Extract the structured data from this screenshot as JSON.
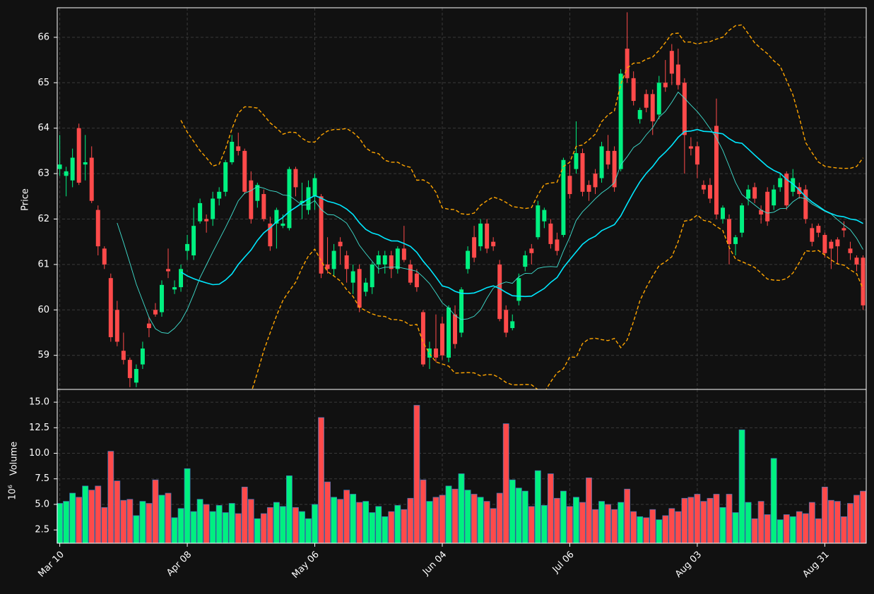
{
  "chart_data": {
    "type": "candlestick",
    "ylabel": "Price",
    "open": [
      63.1,
      62.95,
      62.85,
      64.0,
      63.2,
      63.35,
      62.2,
      61.35,
      60.7,
      60.0,
      59.1,
      58.9,
      58.4,
      58.8,
      59.7,
      60.0,
      59.95,
      60.9,
      60.45,
      60.5,
      61.3,
      61.2,
      61.95,
      62.0,
      62.0,
      62.45,
      62.6,
      63.25,
      63.6,
      63.5,
      62.85,
      62.4,
      62.55,
      61.9,
      61.9,
      61.85,
      61.8,
      63.1,
      62.35,
      62.2,
      62.5,
      62.5,
      61.0,
      60.9,
      61.5,
      61.2,
      60.6,
      60.9,
      60.4,
      60.5,
      61.0,
      61.0,
      61.2,
      60.9,
      61.35,
      61.0,
      60.8,
      59.95,
      58.95,
      59.15,
      59.7,
      58.95,
      59.9,
      59.5,
      60.9,
      61.6,
      61.4,
      61.9,
      61.5,
      61.0,
      60.0,
      59.6,
      60.2,
      60.95,
      61.35,
      61.6,
      61.95,
      61.9,
      61.55,
      61.65,
      62.95,
      63.1,
      63.45,
      62.75,
      63.0,
      62.9,
      63.5,
      63.5,
      63.1,
      65.75,
      65.1,
      64.2,
      64.75,
      64.75,
      64.3,
      65.0,
      65.7,
      65.4,
      65.0,
      63.6,
      63.6,
      62.75,
      62.75,
      64.05,
      62.0,
      62.0,
      61.45,
      61.7,
      62.45,
      62.7,
      62.2,
      62.6,
      62.3,
      62.7,
      63.0,
      62.6,
      62.7,
      62.65,
      61.8,
      61.85,
      61.65,
      61.5,
      61.55,
      61.8,
      61.35,
      61.15,
      61.15
    ],
    "high": [
      63.85,
      63.15,
      63.55,
      64.1,
      63.85,
      63.6,
      62.3,
      61.4,
      60.8,
      60.2,
      59.5,
      58.95,
      58.8,
      59.3,
      59.85,
      60.15,
      60.65,
      61.35,
      60.65,
      61.0,
      61.65,
      62.25,
      62.45,
      62.1,
      62.6,
      62.7,
      63.3,
      63.85,
      63.9,
      63.55,
      63.05,
      62.8,
      62.65,
      62.05,
      62.25,
      62.1,
      63.15,
      63.15,
      62.8,
      62.85,
      63.0,
      62.55,
      61.6,
      61.45,
      61.6,
      61.3,
      61.0,
      61.0,
      60.7,
      61.05,
      61.3,
      61.3,
      61.3,
      61.4,
      61.85,
      61.1,
      60.9,
      60.0,
      59.3,
      59.9,
      59.85,
      60.1,
      60.1,
      60.5,
      61.4,
      61.85,
      62.0,
      62.0,
      61.6,
      61.1,
      60.1,
      59.9,
      60.8,
      61.3,
      61.45,
      62.4,
      62.25,
      62.0,
      61.7,
      63.35,
      63.2,
      64.15,
      63.55,
      62.85,
      63.1,
      63.7,
      63.85,
      63.6,
      65.3,
      66.55,
      65.25,
      64.45,
      64.85,
      64.85,
      65.15,
      65.5,
      65.85,
      65.75,
      65.1,
      63.8,
      63.7,
      62.85,
      62.9,
      64.65,
      62.3,
      62.1,
      61.65,
      62.35,
      62.75,
      62.8,
      62.3,
      62.7,
      62.75,
      63.0,
      63.05,
      63.1,
      62.8,
      62.75,
      61.9,
      61.9,
      61.7,
      61.55,
      61.6,
      61.95,
      61.5,
      61.2,
      61.2
    ],
    "low": [
      62.95,
      62.5,
      62.7,
      62.75,
      62.85,
      62.35,
      61.2,
      60.9,
      59.3,
      59.2,
      58.8,
      58.3,
      58.3,
      58.7,
      59.4,
      59.85,
      59.85,
      60.7,
      60.35,
      60.4,
      61.1,
      61.1,
      61.9,
      61.7,
      61.85,
      62.3,
      62.5,
      63.2,
      63.4,
      62.55,
      61.9,
      62.25,
      61.95,
      61.3,
      61.35,
      61.8,
      61.75,
      62.5,
      62.0,
      62.1,
      62.2,
      60.7,
      60.8,
      60.75,
      61.0,
      60.6,
      60.35,
      59.95,
      60.3,
      60.35,
      60.8,
      60.8,
      60.7,
      60.8,
      61.05,
      60.55,
      60.4,
      58.75,
      58.7,
      58.85,
      58.9,
      58.85,
      59.15,
      59.4,
      60.8,
      61.05,
      61.3,
      61.25,
      61.3,
      59.75,
      59.4,
      59.55,
      60.1,
      60.85,
      61.0,
      61.55,
      61.8,
      61.35,
      61.2,
      61.6,
      62.45,
      63.0,
      62.5,
      62.4,
      62.55,
      62.8,
      63.1,
      62.6,
      63.05,
      65.0,
      64.5,
      64.1,
      64.35,
      63.85,
      64.2,
      64.8,
      64.95,
      64.85,
      63.0,
      63.4,
      62.9,
      62.55,
      62.35,
      62.0,
      61.9,
      61.0,
      61.2,
      61.6,
      62.3,
      62.35,
      61.9,
      61.85,
      62.2,
      62.6,
      62.2,
      62.5,
      62.45,
      61.9,
      61.4,
      61.6,
      61.15,
      60.9,
      61.0,
      61.6,
      61.1,
      60.85,
      60.0
    ],
    "close": [
      63.2,
      63.05,
      63.35,
      62.8,
      63.25,
      62.4,
      61.4,
      61.0,
      59.4,
      59.3,
      58.9,
      58.5,
      58.7,
      59.15,
      59.6,
      59.9,
      60.55,
      60.85,
      60.5,
      60.9,
      61.45,
      61.85,
      62.35,
      61.95,
      62.45,
      62.6,
      63.25,
      63.7,
      63.5,
      62.6,
      62.0,
      62.75,
      62.0,
      61.4,
      62.2,
      61.9,
      63.1,
      62.7,
      62.4,
      62.7,
      62.9,
      60.8,
      60.9,
      61.3,
      61.4,
      60.9,
      60.85,
      60.05,
      60.6,
      61.0,
      61.2,
      61.2,
      60.9,
      61.35,
      61.1,
      60.6,
      60.5,
      58.8,
      59.15,
      58.95,
      59.0,
      60.05,
      59.25,
      60.45,
      61.3,
      61.15,
      61.9,
      61.35,
      61.4,
      59.8,
      59.5,
      59.75,
      60.7,
      61.2,
      61.25,
      62.3,
      62.2,
      61.45,
      61.3,
      63.3,
      62.55,
      63.45,
      62.6,
      62.6,
      62.7,
      63.6,
      63.2,
      62.7,
      65.2,
      65.1,
      64.6,
      64.4,
      64.45,
      64.15,
      65.0,
      64.9,
      65.2,
      64.95,
      63.85,
      63.55,
      63.2,
      62.65,
      62.45,
      62.1,
      62.25,
      61.45,
      61.6,
      62.3,
      62.65,
      62.45,
      62.1,
      61.95,
      62.65,
      62.9,
      62.3,
      62.9,
      62.55,
      62.0,
      61.5,
      61.7,
      61.25,
      61.35,
      61.4,
      61.75,
      61.25,
      61.0,
      60.1
    ],
    "volume": [
      5.1,
      5.3,
      6.1,
      5.7,
      6.8,
      6.4,
      6.8,
      4.7,
      10.2,
      7.3,
      5.4,
      5.5,
      3.9,
      5.3,
      5.1,
      7.4,
      5.9,
      6.1,
      3.7,
      4.6,
      8.5,
      4.3,
      5.5,
      5.0,
      4.3,
      4.9,
      4.2,
      5.1,
      4.1,
      6.7,
      5.5,
      3.6,
      4.1,
      4.7,
      5.2,
      4.8,
      7.8,
      4.7,
      4.3,
      3.6,
      5.0,
      13.5,
      7.2,
      5.7,
      5.5,
      6.4,
      6.0,
      5.2,
      5.3,
      4.2,
      4.8,
      3.8,
      4.3,
      4.9,
      4.5,
      5.6,
      14.7,
      7.4,
      5.3,
      5.7,
      5.9,
      6.8,
      6.5,
      8.0,
      6.4,
      6.0,
      5.7,
      5.3,
      4.6,
      6.1,
      12.9,
      7.4,
      6.6,
      6.3,
      4.8,
      8.3,
      4.9,
      8.0,
      5.6,
      6.3,
      4.8,
      5.7,
      5.2,
      7.6,
      4.5,
      5.3,
      5.0,
      4.5,
      5.2,
      6.5,
      4.3,
      3.8,
      3.7,
      4.5,
      3.5,
      3.9,
      4.6,
      4.3,
      5.6,
      5.7,
      6.0,
      5.3,
      5.6,
      6.0,
      4.7,
      6.0,
      4.2,
      12.3,
      5.2,
      3.6,
      5.3,
      4.0,
      9.5,
      3.5,
      4.0,
      3.8,
      4.3,
      4.1,
      5.2,
      3.6,
      6.7,
      5.4,
      5.3,
      3.8,
      5.1,
      5.9,
      6.3
    ],
    "volume_ylabel": "Volume",
    "volume_offset_label": "10⁶",
    "up_color": "#00f080",
    "down_color": "#ff4a4a",
    "volume_edge_color": "#3d74b8",
    "moving_averages": [
      {
        "period": 10,
        "color": "#3fe0d0"
      },
      {
        "period": 20,
        "color": "#00e8ff"
      }
    ],
    "bollinger": {
      "period": 20,
      "std": 2,
      "color": "#ffa500"
    },
    "xlim": [
      -0.4,
      126.5
    ],
    "xticks": [
      {
        "value": 0,
        "label": "Mar 10"
      },
      {
        "value": 20,
        "label": "Apr 08"
      },
      {
        "value": 40,
        "label": "May 06"
      },
      {
        "value": 60,
        "label": "Jun 04"
      },
      {
        "value": 80,
        "label": "Jul 06"
      },
      {
        "value": 100,
        "label": "Aug 03"
      },
      {
        "value": 120,
        "label": "Aug 31"
      }
    ],
    "ylim": [
      58.25,
      66.65
    ],
    "yticks": [
      59,
      60,
      61,
      62,
      63,
      64,
      65,
      66
    ],
    "volume_ylim": [
      1.2,
      16.25
    ],
    "volume_yticks": [
      2.5,
      {
        "value": 5,
        "label": "5.0"
      },
      {
        "value": 7.5,
        "label": "7.5"
      },
      {
        "value": 10,
        "label": "10.0"
      },
      12.5,
      {
        "value": 15,
        "label": "15.0"
      }
    ],
    "grid": true
  }
}
